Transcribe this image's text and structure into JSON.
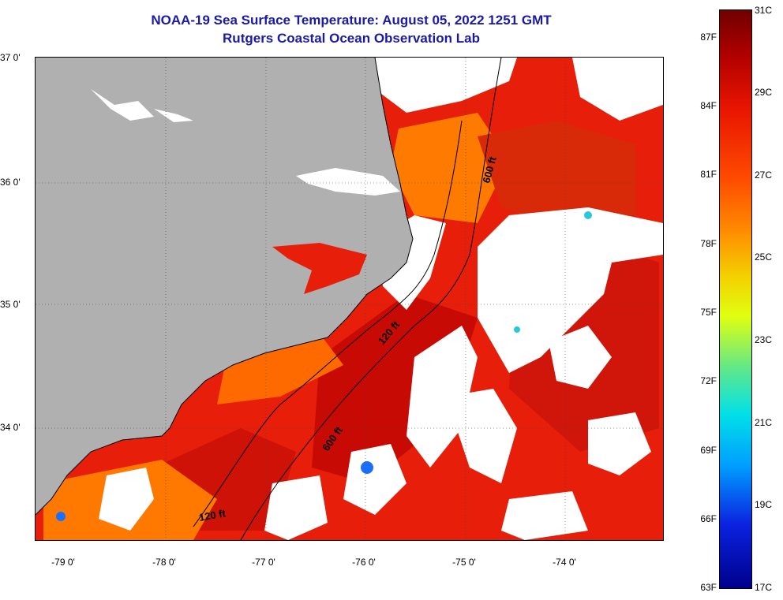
{
  "header": {
    "title": "NOAA-19 Sea Surface Temperature:  August 05, 2022 1251 GMT",
    "subtitle": "Rutgers Coastal Ocean Observation Lab"
  },
  "map": {
    "lat_labels": [
      "37 0'",
      "36 0'",
      "35 0'",
      "34 0'"
    ],
    "lon_labels": [
      "-79 0'",
      "-78 0'",
      "-77 0'",
      "-76 0'",
      "-75 0'",
      "-74 0'"
    ],
    "contours": [
      "600 ft",
      "120 ft",
      "600 ft",
      "120 ft"
    ],
    "colors": {
      "land": "#b0b0b0",
      "cloud": "#ffffff",
      "water_warm": "#e61e0a",
      "water_hot": "#c80a05",
      "water_cool": "#ff8c00"
    }
  },
  "colorbar": {
    "fahrenheit": [
      "87F",
      "84F",
      "81F",
      "78F",
      "75F",
      "72F",
      "69F",
      "66F",
      "63F"
    ],
    "celsius": [
      "31C",
      "29C",
      "27C",
      "25C",
      "23C",
      "21C",
      "19C",
      "17C"
    ]
  }
}
